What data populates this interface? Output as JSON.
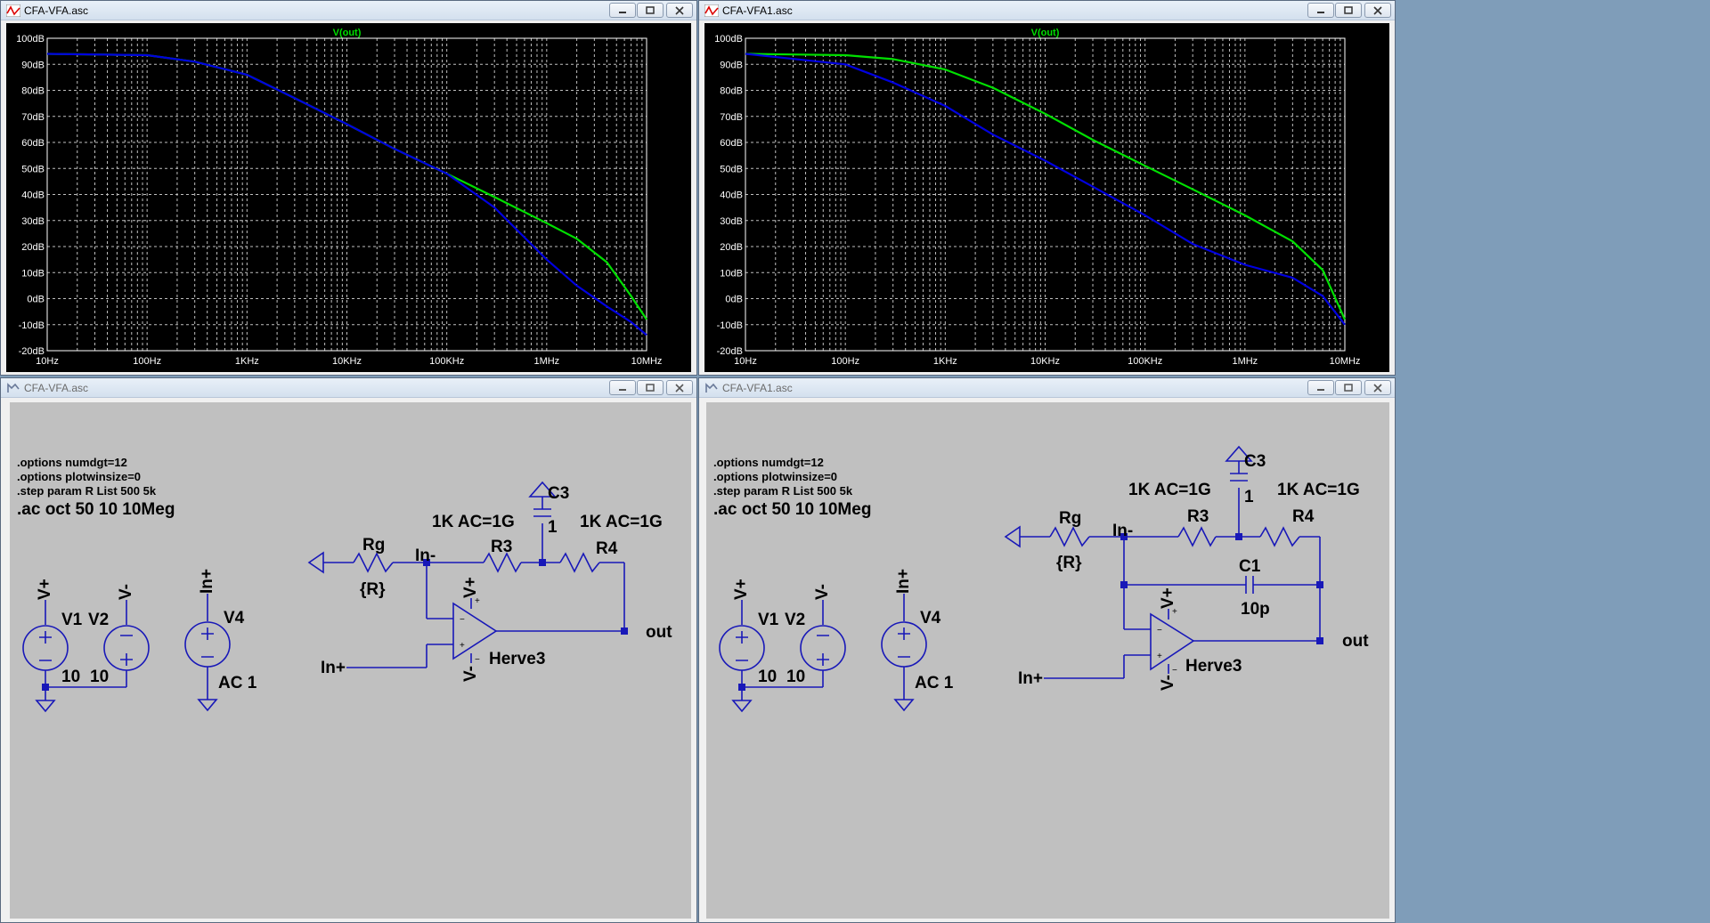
{
  "windows": [
    {
      "id": "plot-left",
      "title": "CFA-VFA.asc",
      "active": true,
      "chart_data": {
        "type": "line",
        "title": "V(out)",
        "x_scale": "log",
        "xlim": [
          10,
          10000000
        ],
        "ylim": [
          -20,
          100
        ],
        "grid": true,
        "x_ticks": [
          "10Hz",
          "100Hz",
          "1KHz",
          "10KHz",
          "100KHz",
          "1MHz",
          "10MHz"
        ],
        "y_ticks": [
          "100dB",
          "90dB",
          "80dB",
          "70dB",
          "60dB",
          "50dB",
          "40dB",
          "30dB",
          "20dB",
          "10dB",
          "0dB",
          "-10dB",
          "-20dB"
        ],
        "series": [
          {
            "color": "#00e000",
            "x": [
              10,
              100,
              300,
              1000,
              3000,
              10000,
              30000,
              100000,
              300000,
              1000000,
              2000000,
              4000000,
              7000000,
              10000000
            ],
            "values": [
              94,
              93.5,
              91,
              86,
              77,
              67,
              57.5,
              48,
              39,
              29,
              23,
              14,
              1,
              -8
            ]
          },
          {
            "color": "#0000e0",
            "x": [
              10,
              100,
              300,
              1000,
              3000,
              10000,
              30000,
              100000,
              300000,
              1000000,
              2000000,
              4000000,
              7000000,
              10000000
            ],
            "values": [
              94,
              93.5,
              91,
              86,
              77,
              67,
              57.5,
              48,
              35,
              15,
              5,
              -3,
              -9,
              -14
            ]
          }
        ]
      }
    },
    {
      "id": "plot-right",
      "title": "CFA-VFA1.asc",
      "active": true,
      "chart_data": {
        "type": "line",
        "title": "V(out)",
        "x_scale": "log",
        "xlim": [
          10,
          10000000
        ],
        "ylim": [
          -20,
          100
        ],
        "grid": true,
        "x_ticks": [
          "10Hz",
          "100Hz",
          "1KHz",
          "10KHz",
          "100KHz",
          "1MHz",
          "10MHz"
        ],
        "y_ticks": [
          "100dB",
          "90dB",
          "80dB",
          "70dB",
          "60dB",
          "50dB",
          "40dB",
          "30dB",
          "20dB",
          "10dB",
          "0dB",
          "-10dB",
          "-20dB"
        ],
        "series": [
          {
            "color": "#00e000",
            "x": [
              10,
              100,
              300,
              1000,
              3000,
              10000,
              30000,
              100000,
              300000,
              1000000,
              3000000,
              6000000,
              10000000
            ],
            "values": [
              94,
              93.5,
              92,
              88,
              81,
              71,
              61,
              51,
              42,
              32,
              22,
              11,
              -8
            ]
          },
          {
            "color": "#0000e0",
            "x": [
              10,
              100,
              300,
              1000,
              3000,
              10000,
              30000,
              100000,
              300000,
              1000000,
              3000000,
              6000000,
              10000000
            ],
            "values": [
              94,
              90,
              83,
              74,
              63,
              53,
              43,
              32,
              21,
              13,
              8,
              1,
              -10
            ]
          }
        ]
      }
    },
    {
      "id": "schem-left",
      "title": "CFA-VFA.asc",
      "active": false,
      "directives": [
        ".options numdgt=12",
        ".options plotwinsize=0",
        ".step param R List 500 5k"
      ],
      "ac_directive": ".ac oct 50 10 10Meg",
      "labels": {
        "vplus": "V+",
        "vminus": "V-",
        "v1": "V1",
        "v2": "V2",
        "v1val": "10",
        "v2val": "10",
        "inplus_src": "In+",
        "v4": "V4",
        "ac1": "AC 1",
        "rg": "Rg",
        "rgval": "{R}",
        "inminus": "In-",
        "r3": "R3",
        "r3val": "1K AC=1G",
        "c3": "C3",
        "c3val": "1",
        "r4": "R4",
        "r4val": "1K AC=1G",
        "opamp_vplus": "V+",
        "opamp_vminus": "V-",
        "opamp": "Herve3",
        "inplus": "In+",
        "out": "out"
      }
    },
    {
      "id": "schem-right",
      "title": "CFA-VFA1.asc",
      "active": false,
      "directives": [
        ".options numdgt=12",
        ".options plotwinsize=0",
        ".step param R List 500 5k"
      ],
      "ac_directive": ".ac oct 50 10 10Meg",
      "labels": {
        "vplus": "V+",
        "vminus": "V-",
        "v1": "V1",
        "v2": "V2",
        "v1val": "10",
        "v2val": "10",
        "inplus_src": "In+",
        "v4": "V4",
        "ac1": "AC 1",
        "rg": "Rg",
        "rgval": "{R}",
        "inminus": "In-",
        "r3": "R3",
        "r3val": "1K AC=1G",
        "c3": "C3",
        "c3val": "1",
        "r4": "R4",
        "r4val": "1K AC=1G",
        "c1": "C1",
        "c1val": "10p",
        "opamp_vplus": "V+",
        "opamp_vminus": "V-",
        "opamp": "Herve3",
        "inplus": "In+",
        "out": "out"
      }
    }
  ],
  "icons": {
    "plot": "waveform-plot-icon",
    "schematic": "schematic-icon",
    "minimize": "minimize-icon",
    "maximize": "maximize-icon",
    "close": "close-icon"
  }
}
